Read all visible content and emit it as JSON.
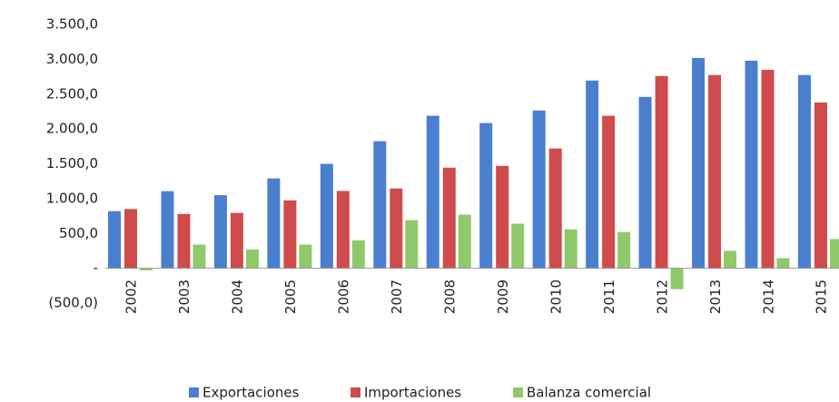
{
  "chart_data": {
    "type": "bar",
    "categories": [
      "2002",
      "2003",
      "2004",
      "2005",
      "2006",
      "2007",
      "2008",
      "2009",
      "2010",
      "2011",
      "2012",
      "2013",
      "2014",
      "2015"
    ],
    "series": [
      {
        "name": "Exportaciones",
        "color": "#4a7fcf",
        "values": [
          820,
          1107,
          1050,
          1290,
          1500,
          1825,
          2190,
          2085,
          2265,
          2695,
          2460,
          3020,
          2980,
          2775
        ]
      },
      {
        "name": "Importaciones",
        "color": "#d04b4b",
        "values": [
          850,
          780,
          795,
          975,
          1110,
          1145,
          1445,
          1470,
          1720,
          2190,
          2760,
          2775,
          2850,
          2380
        ]
      },
      {
        "name": "Balanza comercial",
        "color": "#8fc96a",
        "values": [
          -30,
          340,
          270,
          340,
          400,
          690,
          770,
          640,
          560,
          520,
          -300,
          250,
          145,
          420
        ]
      }
    ],
    "ylim": [
      -500,
      3500
    ],
    "yticks": [
      {
        "value": -500,
        "label": "(500,0)"
      },
      {
        "value": 0,
        "label": "-"
      },
      {
        "value": 500,
        "label": "500,0"
      },
      {
        "value": 1000,
        "label": "1.000,0"
      },
      {
        "value": 1500,
        "label": "1.500,0"
      },
      {
        "value": 2000,
        "label": "2.000,0"
      },
      {
        "value": 2500,
        "label": "2.500,0"
      },
      {
        "value": 3000,
        "label": "3.000,0"
      },
      {
        "value": 3500,
        "label": "3.500,0"
      }
    ],
    "grid": false,
    "legend": "bottom"
  }
}
